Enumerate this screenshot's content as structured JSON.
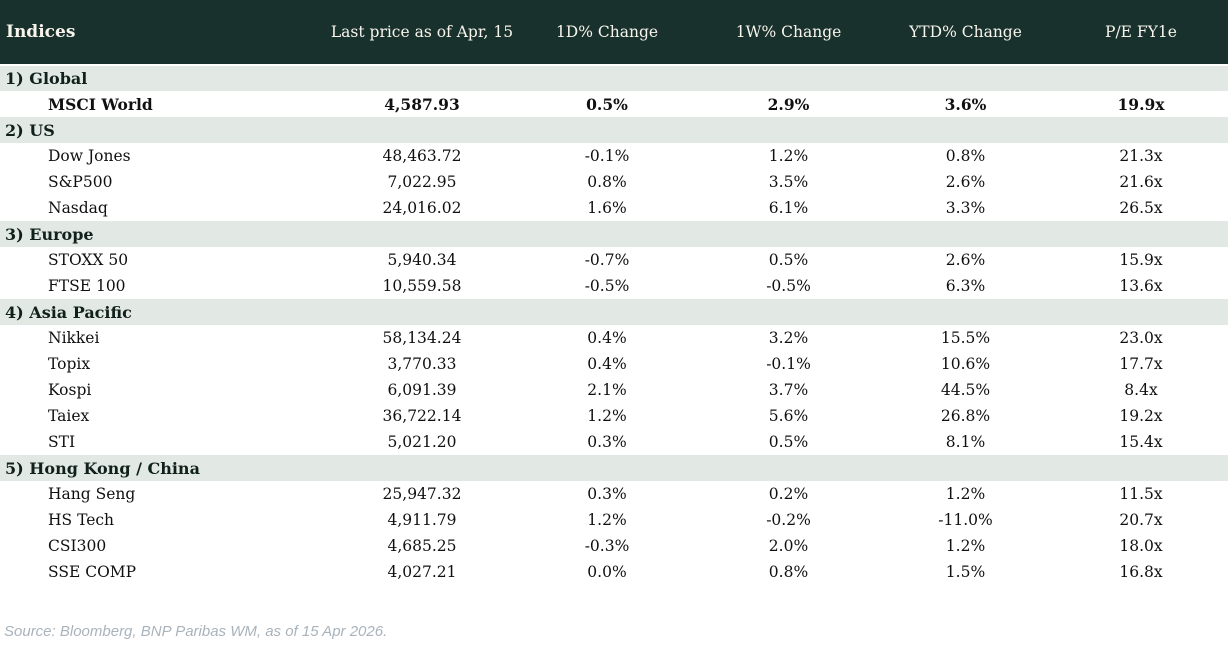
{
  "table": {
    "columns": [
      "Indices",
      "Last price as of Apr, 15",
      "1D% Change",
      "1W% Change",
      "YTD% Change",
      "P/E FY1e"
    ],
    "sections": [
      {
        "label": "1) Global",
        "rows": [
          {
            "name": "MSCI World",
            "price": "4,587.93",
            "d1": "0.5%",
            "w1": "2.9%",
            "ytd": "3.6%",
            "pe": "19.9x",
            "bold": true
          }
        ]
      },
      {
        "label": "2) US",
        "rows": [
          {
            "name": "Dow Jones",
            "price": "48,463.72",
            "d1": "-0.1%",
            "w1": "1.2%",
            "ytd": "0.8%",
            "pe": "21.3x",
            "bold": false
          },
          {
            "name": "S&P500",
            "price": "7,022.95",
            "d1": "0.8%",
            "w1": "3.5%",
            "ytd": "2.6%",
            "pe": "21.6x",
            "bold": false
          },
          {
            "name": "Nasdaq",
            "price": "24,016.02",
            "d1": "1.6%",
            "w1": "6.1%",
            "ytd": "3.3%",
            "pe": "26.5x",
            "bold": false
          }
        ]
      },
      {
        "label": "3) Europe",
        "rows": [
          {
            "name": "STOXX 50",
            "price": "5,940.34",
            "d1": "-0.7%",
            "w1": "0.5%",
            "ytd": "2.6%",
            "pe": "15.9x",
            "bold": false
          },
          {
            "name": "FTSE 100",
            "price": "10,559.58",
            "d1": "-0.5%",
            "w1": "-0.5%",
            "ytd": "6.3%",
            "pe": "13.6x",
            "bold": false
          }
        ]
      },
      {
        "label": "4) Asia Pacific",
        "rows": [
          {
            "name": "Nikkei",
            "price": "58,134.24",
            "d1": "0.4%",
            "w1": "3.2%",
            "ytd": "15.5%",
            "pe": "23.0x",
            "bold": false
          },
          {
            "name": "Topix",
            "price": "3,770.33",
            "d1": "0.4%",
            "w1": "-0.1%",
            "ytd": "10.6%",
            "pe": "17.7x",
            "bold": false
          },
          {
            "name": "Kospi",
            "price": "6,091.39",
            "d1": "2.1%",
            "w1": "3.7%",
            "ytd": "44.5%",
            "pe": "8.4x",
            "bold": false
          },
          {
            "name": "Taiex",
            "price": "36,722.14",
            "d1": "1.2%",
            "w1": "5.6%",
            "ytd": "26.8%",
            "pe": "19.2x",
            "bold": false
          },
          {
            "name": "STI",
            "price": "5,021.20",
            "d1": "0.3%",
            "w1": "0.5%",
            "ytd": "8.1%",
            "pe": "15.4x",
            "bold": false
          }
        ]
      },
      {
        "label": "5) Hong Kong / China",
        "rows": [
          {
            "name": "Hang Seng",
            "price": "25,947.32",
            "d1": "0.3%",
            "w1": "0.2%",
            "ytd": "1.2%",
            "pe": "11.5x",
            "bold": false
          },
          {
            "name": "HS Tech",
            "price": "4,911.79",
            "d1": "1.2%",
            "w1": "-0.2%",
            "ytd": "-11.0%",
            "pe": "20.7x",
            "bold": false
          },
          {
            "name": "CSI300",
            "price": "4,685.25",
            "d1": "-0.3%",
            "w1": "2.0%",
            "ytd": "1.2%",
            "pe": "18.0x",
            "bold": false
          },
          {
            "name": "SSE COMP",
            "price": "4,027.21",
            "d1": "0.0%",
            "w1": "0.8%",
            "ytd": "1.5%",
            "pe": "16.8x",
            "bold": false
          }
        ]
      }
    ]
  },
  "footer": {
    "source": "Source: Bloomberg, BNP Paribas WM, as of 15 Apr 2026."
  },
  "colors": {
    "header_bg": "#19312c",
    "header_fg": "#f7f4ec",
    "section_bg": "#e2e8e3",
    "positive": "#0a7d23",
    "negative": "#c00021"
  }
}
